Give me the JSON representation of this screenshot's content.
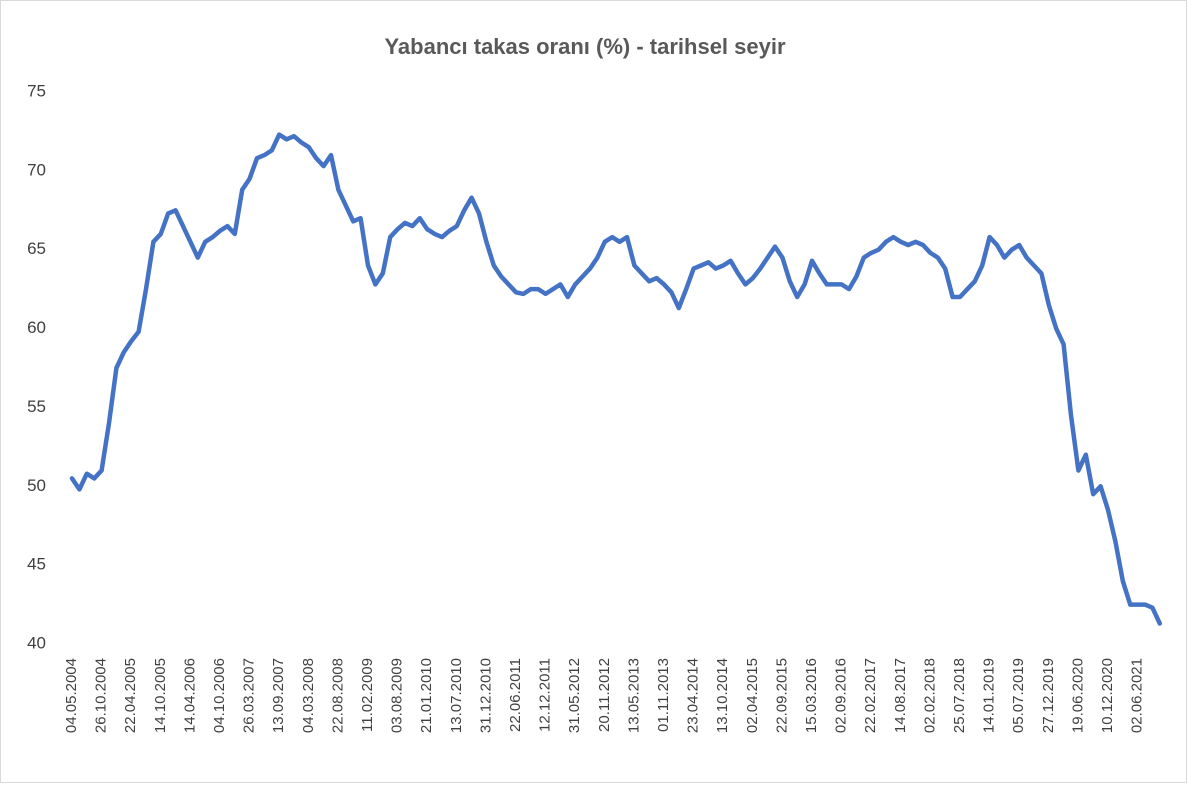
{
  "chart_data": {
    "type": "line",
    "title": "Yabancı takas oranı (%) - tarihsel seyir",
    "categories": [
      "04.05.2004",
      null,
      null,
      null,
      "26.10.2004",
      null,
      null,
      null,
      "22.04.2005",
      null,
      null,
      null,
      "14.10.2005",
      null,
      null,
      null,
      "14.04.2006",
      null,
      null,
      null,
      "04.10.2006",
      null,
      null,
      null,
      "26.03.2007",
      null,
      null,
      null,
      "13.09.2007",
      null,
      null,
      null,
      "04.03.2008",
      null,
      null,
      null,
      "22.08.2008",
      null,
      null,
      null,
      "11.02.2009",
      null,
      null,
      null,
      "03.08.2009",
      null,
      null,
      null,
      "21.01.2010",
      null,
      null,
      null,
      "13.07.2010",
      null,
      null,
      null,
      "31.12.2010",
      null,
      null,
      null,
      "22.06.2011",
      null,
      null,
      null,
      "12.12.2011",
      null,
      null,
      null,
      "31.05.2012",
      null,
      null,
      null,
      "20.11.2012",
      null,
      null,
      null,
      "13.05.2013",
      null,
      null,
      null,
      "01.11.2013",
      null,
      null,
      null,
      "23.04.2014",
      null,
      null,
      null,
      "13.10.2014",
      null,
      null,
      null,
      "02.04.2015",
      null,
      null,
      null,
      "22.09.2015",
      null,
      null,
      null,
      "15.03.2016",
      null,
      null,
      null,
      "02.09.2016",
      null,
      null,
      null,
      "22.02.2017",
      null,
      null,
      null,
      "14.08.2017",
      null,
      null,
      null,
      "02.02.2018",
      null,
      null,
      null,
      "25.07.2018",
      null,
      null,
      null,
      "14.01.2019",
      null,
      null,
      null,
      "05.07.2019",
      null,
      null,
      null,
      "27.12.2019",
      null,
      null,
      null,
      "19.06.2020",
      null,
      null,
      null,
      "10.12.2020",
      null,
      null,
      null,
      "02.06.2021",
      null,
      null,
      null
    ],
    "series": [
      {
        "color": "#4472c4",
        "values": [
          50.5,
          49.8,
          50.8,
          50.5,
          51,
          54,
          57.5,
          58.5,
          59.2,
          59.8,
          62.5,
          65.5,
          66,
          67.3,
          67.5,
          66.5,
          65.5,
          64.5,
          65.5,
          65.8,
          66.2,
          66.5,
          66,
          68.8,
          69.5,
          70.8,
          71,
          71.3,
          72.3,
          72,
          72.2,
          71.8,
          71.5,
          70.8,
          70.3,
          71,
          68.8,
          67.8,
          66.8,
          67,
          64,
          62.8,
          63.5,
          65.8,
          66.3,
          66.7,
          66.5,
          67,
          66.3,
          66,
          65.8,
          66.2,
          66.5,
          67.5,
          68.3,
          67.3,
          65.5,
          64,
          63.3,
          62.8,
          62.3,
          62.2,
          62.5,
          62.5,
          62.2,
          62.5,
          62.8,
          62,
          62.8,
          63.3,
          63.8,
          64.5,
          65.5,
          65.8,
          65.5,
          65.8,
          64,
          63.5,
          63,
          63.2,
          62.8,
          62.3,
          61.3,
          62.5,
          63.8,
          64,
          64.2,
          63.8,
          64,
          64.3,
          63.5,
          62.8,
          63.2,
          63.8,
          64.5,
          65.2,
          64.5,
          63,
          62,
          62.8,
          64.3,
          63.5,
          62.8,
          62.8,
          62.8,
          62.5,
          63.3,
          64.5,
          64.8,
          65,
          65.5,
          65.8,
          65.5,
          65.3,
          65.5,
          65.3,
          64.8,
          64.5,
          63.8,
          62,
          62,
          62.5,
          63,
          64,
          65.8,
          65.3,
          64.5,
          65,
          65.3,
          64.5,
          64,
          63.5,
          61.5,
          60,
          59,
          54.5,
          51,
          52,
          49.5,
          50,
          48.5,
          46.5,
          44,
          42.5,
          42.5,
          42.5,
          42.3,
          41.3
        ]
      }
    ],
    "ylim": [
      40,
      75
    ],
    "yticks": [
      40,
      45,
      50,
      55,
      60,
      65,
      70,
      75
    ],
    "grid": false
  }
}
